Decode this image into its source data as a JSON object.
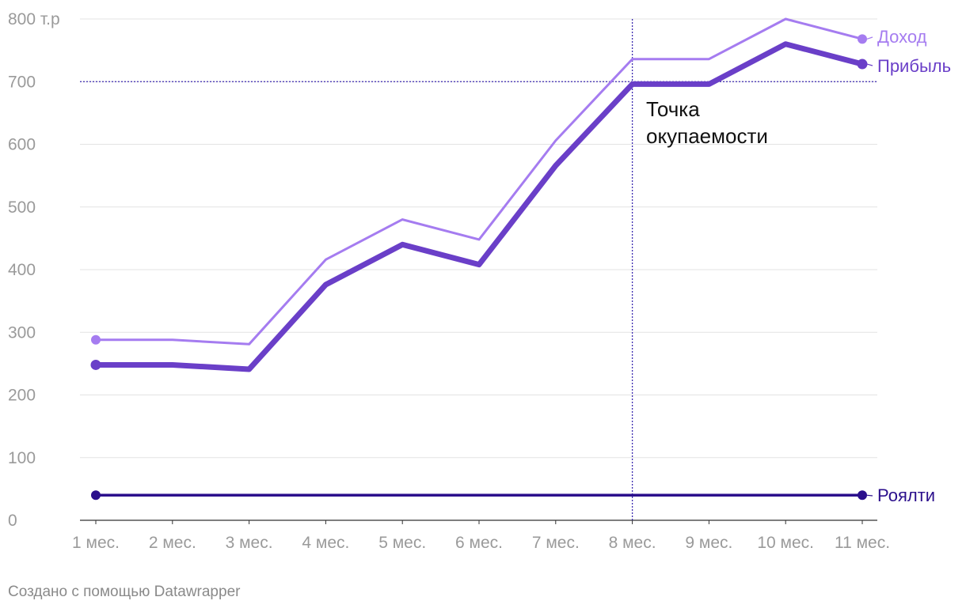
{
  "chart_data": {
    "type": "line",
    "categories": [
      "1 мес.",
      "2 мес.",
      "3 мес.",
      "4 мес.",
      "5 мес.",
      "6 мес.",
      "7 мес.",
      "8 мес.",
      "9 мес.",
      "10 мес.",
      "11 мес."
    ],
    "y_ticks": [
      {
        "value": 0,
        "label": "0"
      },
      {
        "value": 100,
        "label": "100"
      },
      {
        "value": 200,
        "label": "200"
      },
      {
        "value": 300,
        "label": "300"
      },
      {
        "value": 400,
        "label": "400"
      },
      {
        "value": 500,
        "label": "500"
      },
      {
        "value": 600,
        "label": "600"
      },
      {
        "value": 700,
        "label": "700"
      },
      {
        "value": 800,
        "label": "800 т.р"
      }
    ],
    "ylim": [
      0,
      800
    ],
    "grid": true,
    "series": [
      {
        "name": "Доход",
        "color": "#a57cf0",
        "values": [
          288,
          288,
          281,
          416,
          480,
          448,
          606,
          736,
          736,
          800,
          768
        ]
      },
      {
        "name": "Прибыль",
        "color": "#6a3fc8",
        "values": [
          248,
          248,
          241,
          376,
          440,
          408,
          566,
          696,
          696,
          760,
          728
        ]
      },
      {
        "name": "Роялти",
        "color": "#2b0f8c",
        "values": [
          40,
          40,
          40,
          40,
          40,
          40,
          40,
          40,
          40,
          40,
          40
        ]
      }
    ],
    "reference_lines": {
      "horizontal_value": 700,
      "vertical_category": "8 мес."
    },
    "annotation": {
      "line1": "Точка",
      "line2": "окупаемости"
    }
  },
  "footer": {
    "credit": "Создано с помощью Datawrapper"
  }
}
